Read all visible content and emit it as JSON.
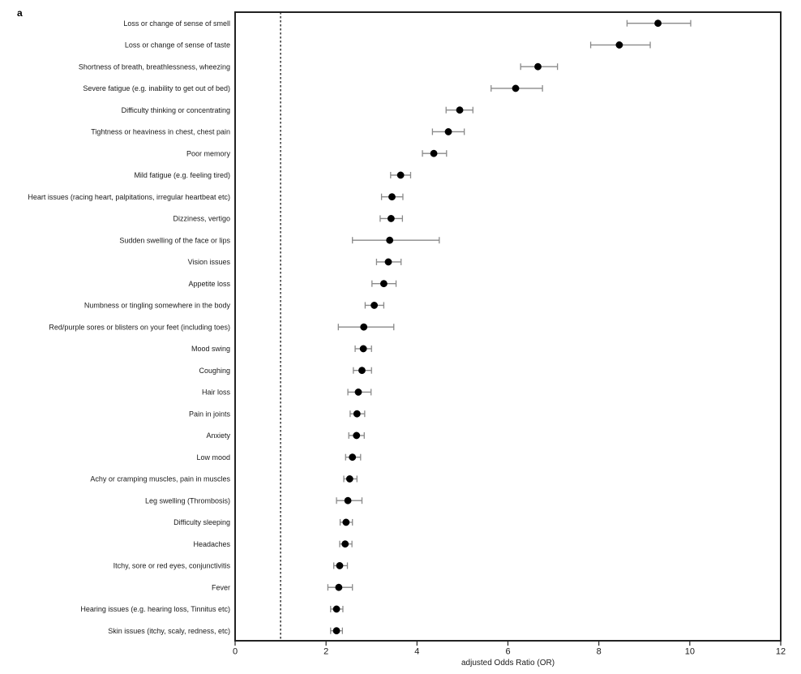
{
  "panel_label": "a",
  "colors": {
    "point": "#000000",
    "error_bar": "#8a8a8a",
    "reference_line": "#000000",
    "frame": "#222222",
    "text": "#1a1a1a",
    "background": "#ffffff"
  },
  "chart_data": {
    "type": "scatter",
    "subtype": "forest-plot",
    "title": "",
    "xlabel": "adjusted Odds Ratio (OR)",
    "ylabel": "",
    "xlim": [
      0,
      12
    ],
    "xticks": [
      0,
      2,
      4,
      6,
      8,
      10,
      12
    ],
    "reference_line_x": 1,
    "grid": false,
    "legend": "none",
    "points": [
      {
        "label": "Loss or change of sense of smell",
        "or": 9.3,
        "ci_low": 8.62,
        "ci_high": 10.02
      },
      {
        "label": "Loss or change of sense of taste",
        "or": 8.45,
        "ci_low": 7.82,
        "ci_high": 9.13
      },
      {
        "label": "Shortness of breath, breathlessness, wheezing",
        "or": 6.66,
        "ci_low": 6.28,
        "ci_high": 7.09
      },
      {
        "label": "Severe fatigue (e.g. inability to get out of bed)",
        "or": 6.17,
        "ci_low": 5.63,
        "ci_high": 6.76
      },
      {
        "label": "Difficulty thinking or concentrating",
        "or": 4.94,
        "ci_low": 4.64,
        "ci_high": 5.23
      },
      {
        "label": "Tightness or heaviness in chest, chest pain",
        "or": 4.69,
        "ci_low": 4.34,
        "ci_high": 5.04
      },
      {
        "label": "Poor memory",
        "or": 4.37,
        "ci_low": 4.12,
        "ci_high": 4.65
      },
      {
        "label": "Mild fatigue (e.g. feeling tired)",
        "or": 3.64,
        "ci_low": 3.42,
        "ci_high": 3.86
      },
      {
        "label": "Heart issues (racing heart, palpitations, irregular heartbeat etc)",
        "or": 3.45,
        "ci_low": 3.22,
        "ci_high": 3.69
      },
      {
        "label": "Dizziness, vertigo",
        "or": 3.43,
        "ci_low": 3.19,
        "ci_high": 3.68
      },
      {
        "label": "Sudden swelling of the face or lips",
        "or": 3.4,
        "ci_low": 2.58,
        "ci_high": 4.49
      },
      {
        "label": "Vision issues",
        "or": 3.37,
        "ci_low": 3.11,
        "ci_high": 3.65
      },
      {
        "label": "Appetite loss",
        "or": 3.27,
        "ci_low": 3.01,
        "ci_high": 3.54
      },
      {
        "label": "Numbness or tingling somewhere in the body",
        "or": 3.06,
        "ci_low": 2.86,
        "ci_high": 3.27
      },
      {
        "label": "Red/purple sores or blisters on your feet (including toes)",
        "or": 2.83,
        "ci_low": 2.27,
        "ci_high": 3.49
      },
      {
        "label": "Mood swing",
        "or": 2.82,
        "ci_low": 2.64,
        "ci_high": 3.0
      },
      {
        "label": "Coughing",
        "or": 2.79,
        "ci_low": 2.6,
        "ci_high": 3.0
      },
      {
        "label": "Hair loss",
        "or": 2.71,
        "ci_low": 2.48,
        "ci_high": 2.99
      },
      {
        "label": "Pain in joints",
        "or": 2.68,
        "ci_low": 2.53,
        "ci_high": 2.85
      },
      {
        "label": "Anxiety",
        "or": 2.67,
        "ci_low": 2.5,
        "ci_high": 2.84
      },
      {
        "label": "Low mood",
        "or": 2.58,
        "ci_low": 2.43,
        "ci_high": 2.76
      },
      {
        "label": "Achy or cramping muscles, pain in muscles",
        "or": 2.52,
        "ci_low": 2.39,
        "ci_high": 2.68
      },
      {
        "label": "Leg swelling (Thrombosis)",
        "or": 2.48,
        "ci_low": 2.23,
        "ci_high": 2.79
      },
      {
        "label": "Difficulty sleeping",
        "or": 2.44,
        "ci_low": 2.31,
        "ci_high": 2.58
      },
      {
        "label": "Headaches",
        "or": 2.42,
        "ci_low": 2.3,
        "ci_high": 2.57
      },
      {
        "label": "Itchy, sore or red eyes, conjunctivitis",
        "or": 2.3,
        "ci_low": 2.17,
        "ci_high": 2.47
      },
      {
        "label": "Fever",
        "or": 2.28,
        "ci_low": 2.04,
        "ci_high": 2.58
      },
      {
        "label": "Hearing issues (e.g. hearing loss, Tinnitus etc)",
        "or": 2.23,
        "ci_low": 2.1,
        "ci_high": 2.37
      },
      {
        "label": "Skin issues (itchy, scaly, redness, etc)",
        "or": 2.23,
        "ci_low": 2.1,
        "ci_high": 2.36
      }
    ]
  }
}
